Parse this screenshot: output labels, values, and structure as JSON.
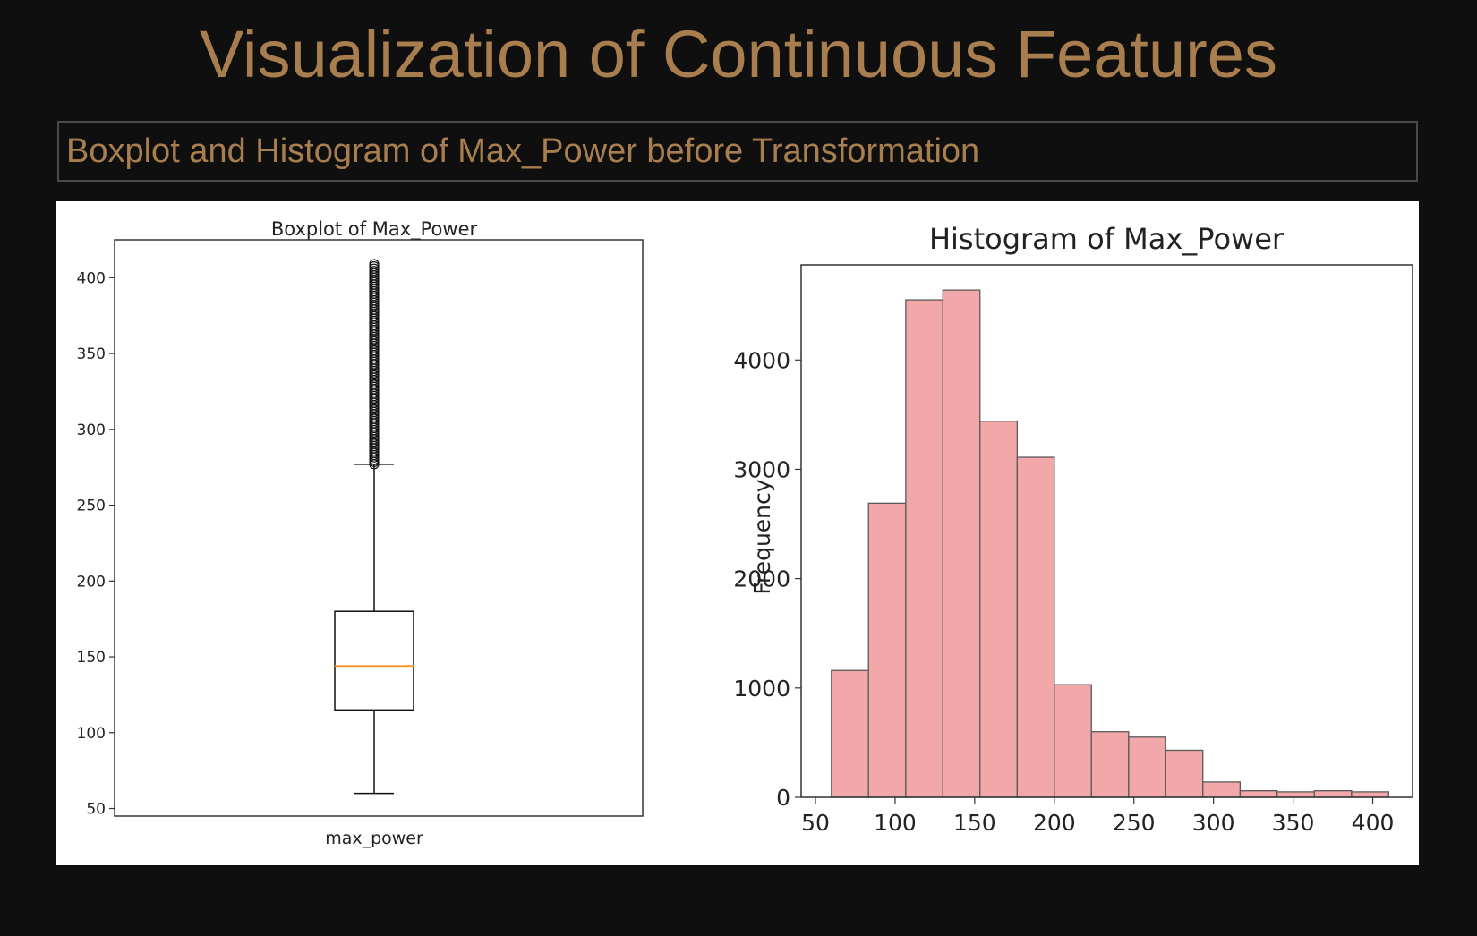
{
  "page": {
    "title": "Visualization of Continuous Features",
    "section_heading": "Boxplot and Histogram of Max_Power before Transformation"
  },
  "colors": {
    "background": "#0f0f0f",
    "accent_text": "#a97e4f",
    "bar_fill": "#f2a8a8",
    "bar_edge": "#5a5a5a",
    "median_line": "#ff8c1a"
  },
  "chart_data": [
    {
      "type": "boxplot",
      "title": "Boxplot of Max_Power",
      "xlabel": "",
      "ylabel": "",
      "category": "max_power",
      "ylim": [
        45,
        425
      ],
      "yticks": [
        50,
        100,
        150,
        200,
        250,
        300,
        350,
        400
      ],
      "stats": {
        "whisker_low": 60,
        "q1": 115,
        "median": 144,
        "q3": 180,
        "whisker_high": 277
      },
      "outliers_range": [
        277,
        410
      ],
      "grid": false
    },
    {
      "type": "bar",
      "title": "Histogram of Max_Power",
      "xlabel": "",
      "ylabel": "Frequency",
      "xlim": [
        41,
        425
      ],
      "ylim": [
        0,
        4870
      ],
      "xticks": [
        50,
        100,
        150,
        200,
        250,
        300,
        350,
        400
      ],
      "yticks": [
        0,
        1000,
        2000,
        3000,
        4000
      ],
      "bin_edges": [
        60,
        83.3,
        106.7,
        130,
        153.3,
        176.7,
        200,
        223.3,
        246.7,
        270,
        293.3,
        316.7,
        340,
        363.3,
        386.7,
        410
      ],
      "values": [
        1160,
        2690,
        4550,
        4640,
        3440,
        3110,
        1030,
        600,
        550,
        430,
        140,
        60,
        50,
        60,
        50
      ],
      "grid": false
    }
  ]
}
